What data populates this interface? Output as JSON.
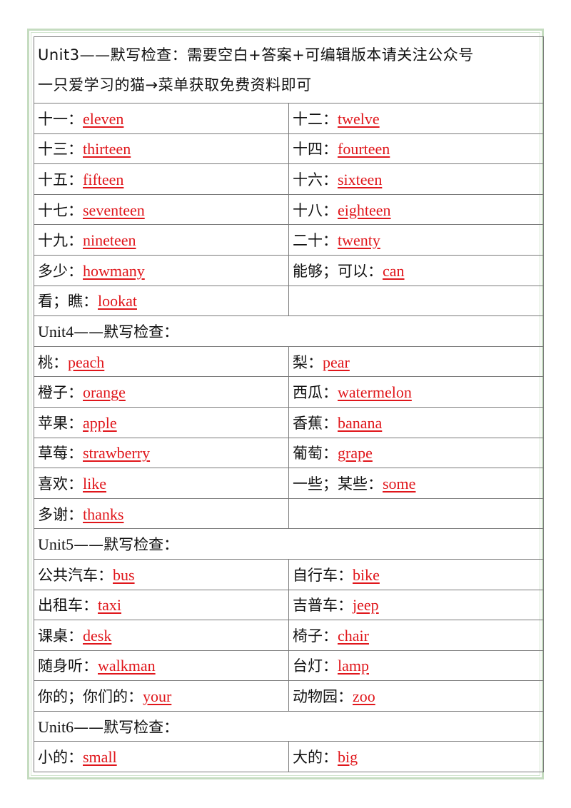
{
  "title_line1": "Unit3——默写检查：需要空白+答案+可编辑版本请关注公众号",
  "title_line2": "一只爱学习的猫→菜单获取免费资料即可",
  "sections": [
    {
      "rows": [
        [
          {
            "zh": "十一：",
            "en": "eleven"
          },
          {
            "zh": "十二：",
            "en": "twelve"
          }
        ],
        [
          {
            "zh": "十三：",
            "en": "thirteen"
          },
          {
            "zh": "十四：",
            "en": "fourteen"
          }
        ],
        [
          {
            "zh": "十五：",
            "en": "fifteen"
          },
          {
            "zh": "十六：",
            "en": "sixteen"
          }
        ],
        [
          {
            "zh": "十七：",
            "en": "seventeen"
          },
          {
            "zh": "十八：",
            "en": "eighteen"
          }
        ],
        [
          {
            "zh": "十九：",
            "en": "nineteen"
          },
          {
            "zh": "二十：",
            "en": "twenty"
          }
        ],
        [
          {
            "zh": "多少：",
            "en": "howmany"
          },
          {
            "zh": "能够；可以：",
            "en": "can"
          }
        ],
        [
          {
            "zh": "看；瞧：",
            "en": "lookat"
          },
          null
        ]
      ]
    },
    {
      "unit_en": "Unit4",
      "unit_zh": "——默写检查：",
      "rows": [
        [
          {
            "zh": "桃：",
            "en": "peach"
          },
          {
            "zh": "梨：",
            "en": "pear"
          }
        ],
        [
          {
            "zh": "橙子：",
            "en": "orange"
          },
          {
            "zh": "西瓜：",
            "en": "watermelon"
          }
        ],
        [
          {
            "zh": "苹果：",
            "en": "apple"
          },
          {
            "zh": "香蕉：",
            "en": "banana"
          }
        ],
        [
          {
            "zh": "草莓：",
            "en": "strawberry"
          },
          {
            "zh": "葡萄：",
            "en": "grape"
          }
        ],
        [
          {
            "zh": "喜欢：",
            "en": "like"
          },
          {
            "zh": "一些；某些：",
            "en": "some"
          }
        ],
        [
          {
            "zh": "多谢：",
            "en": "thanks"
          },
          null
        ]
      ]
    },
    {
      "unit_en": "Unit5",
      "unit_zh": "——默写检查：",
      "rows": [
        [
          {
            "zh": "公共汽车：",
            "en": "bus"
          },
          {
            "zh": "自行车：",
            "en": "bike"
          }
        ],
        [
          {
            "zh": "出租车：",
            "en": "taxi"
          },
          {
            "zh": "吉普车：",
            "en": "jeep"
          }
        ],
        [
          {
            "zh": "课桌：",
            "en": "desk"
          },
          {
            "zh": "椅子：",
            "en": "chair"
          }
        ],
        [
          {
            "zh": "随身听：",
            "en": "walkman"
          },
          {
            "zh": "台灯：",
            "en": "lamp"
          }
        ],
        [
          {
            "zh": "你的；你们的：",
            "en": "your"
          },
          {
            "zh": "动物园：",
            "en": "zoo"
          }
        ]
      ]
    },
    {
      "unit_en": "Unit6",
      "unit_zh": "——默写检查：",
      "rows": [
        [
          {
            "zh": "小的：",
            "en": "small"
          },
          {
            "zh": "大的：",
            "en": "big"
          }
        ]
      ]
    }
  ],
  "colors": {
    "title_blue": "#2121b8",
    "answer_red": "#e0161b",
    "frame_green": "#c5dcc0"
  }
}
